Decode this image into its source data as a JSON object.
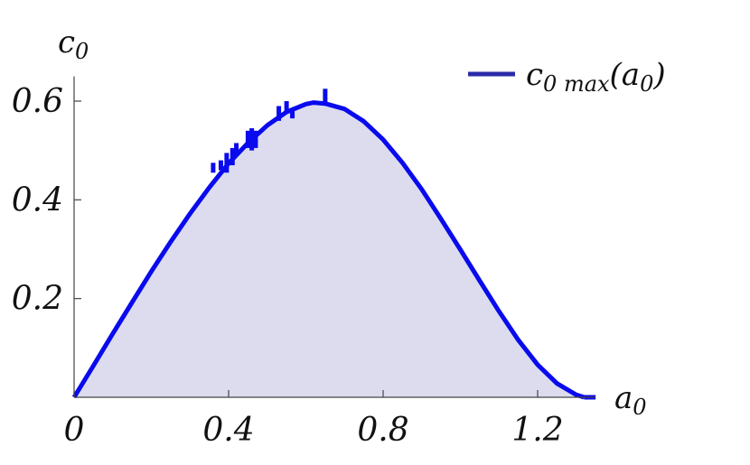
{
  "chart_data": {
    "type": "area",
    "x_axis": {
      "label": "a",
      "label_subscript": "0",
      "range": [
        0,
        1.35
      ],
      "ticks": [
        0,
        0.4,
        0.8,
        1.2
      ],
      "tick_labels": [
        "0",
        "0.4",
        "0.8",
        "1.2"
      ]
    },
    "y_axis": {
      "label": "c",
      "label_subscript": "0",
      "range": [
        0,
        0.65
      ],
      "ticks": [
        0.2,
        0.4,
        0.6
      ],
      "tick_labels": [
        "0.2",
        "0.4",
        "0.6"
      ]
    },
    "grid": false,
    "legend": {
      "position": "top-right",
      "base": "c",
      "subscript": "0 max",
      "paren_open": "(a",
      "paren_subscript": "0",
      "paren_close": ")"
    },
    "series": [
      {
        "name": "c0 max(a0)",
        "color": "#0a0aee",
        "fill_color": "#dcdcee",
        "x": [
          0,
          0.05,
          0.1,
          0.15,
          0.2,
          0.25,
          0.3,
          0.35,
          0.4,
          0.45,
          0.5,
          0.55,
          0.6,
          0.62,
          0.65,
          0.7,
          0.75,
          0.8,
          0.85,
          0.9,
          0.95,
          1.0,
          1.05,
          1.1,
          1.15,
          1.2,
          1.25,
          1.3,
          1.32
        ],
        "values": [
          0,
          0.064,
          0.129,
          0.192,
          0.255,
          0.315,
          0.372,
          0.425,
          0.474,
          0.515,
          0.551,
          0.578,
          0.594,
          0.597,
          0.595,
          0.584,
          0.559,
          0.522,
          0.475,
          0.421,
          0.361,
          0.299,
          0.236,
          0.174,
          0.116,
          0.066,
          0.028,
          0.005,
          0
        ]
      }
    ],
    "error_bars": [
      {
        "x": 0.36,
        "y_low": 0.455,
        "y_high": 0.475
      },
      {
        "x": 0.38,
        "y_low": 0.46,
        "y_high": 0.48
      },
      {
        "x": 0.395,
        "y_low": 0.455,
        "y_high": 0.495
      },
      {
        "x": 0.41,
        "y_low": 0.47,
        "y_high": 0.505
      },
      {
        "x": 0.42,
        "y_low": 0.49,
        "y_high": 0.515
      },
      {
        "x": 0.45,
        "y_low": 0.505,
        "y_high": 0.54
      },
      {
        "x": 0.46,
        "y_low": 0.5,
        "y_high": 0.545
      },
      {
        "x": 0.47,
        "y_low": 0.505,
        "y_high": 0.54
      },
      {
        "x": 0.53,
        "y_low": 0.56,
        "y_high": 0.59
      },
      {
        "x": 0.55,
        "y_low": 0.575,
        "y_high": 0.6
      },
      {
        "x": 0.565,
        "y_low": 0.565,
        "y_high": 0.585
      },
      {
        "x": 0.65,
        "y_low": 0.595,
        "y_high": 0.625
      }
    ],
    "tail": {
      "x": [
        1.32,
        1.35
      ],
      "y": 0
    }
  }
}
